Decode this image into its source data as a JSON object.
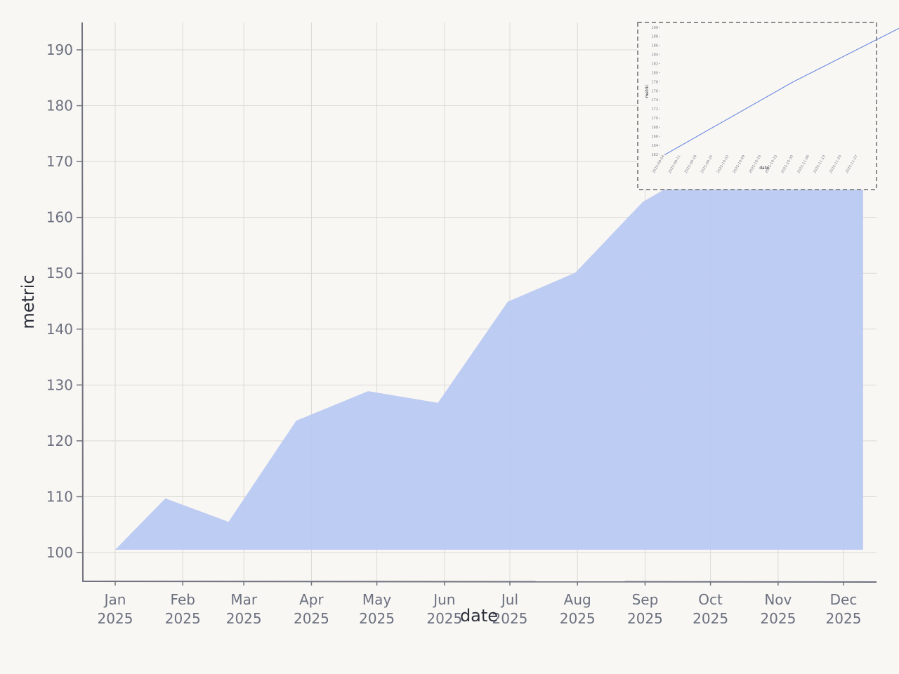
{
  "chart_data": [
    {
      "type": "area",
      "xlabel": "date",
      "ylabel": "metric",
      "x": [
        "2025-01-01",
        "2025-01-24",
        "2025-02-22",
        "2025-03-25",
        "2025-04-27",
        "2025-05-29",
        "2025-06-30",
        "2025-07-31",
        "2025-08-31",
        "2025-09-30",
        "2025-10-31",
        "2025-11-30",
        "2025-12-10"
      ],
      "values": [
        100.5,
        109.7,
        105.5,
        123.6,
        128.9,
        126.8,
        144.9,
        150.1,
        162.8,
        169.5,
        176.0,
        185.0,
        189.0
      ],
      "baseline": 100.5,
      "ylim": [
        95,
        195
      ],
      "y_ticks": [
        100,
        110,
        120,
        130,
        140,
        150,
        160,
        170,
        180,
        190
      ],
      "x_ticks": [
        {
          "date": "2025-01-01",
          "month": "Jan",
          "year": "2025"
        },
        {
          "date": "2025-02-01",
          "month": "Feb",
          "year": "2025"
        },
        {
          "date": "2025-03-01",
          "month": "Mar",
          "year": "2025"
        },
        {
          "date": "2025-04-01",
          "month": "Apr",
          "year": "2025"
        },
        {
          "date": "2025-05-01",
          "month": "May",
          "year": "2025"
        },
        {
          "date": "2025-06-01",
          "month": "Jun",
          "year": "2025"
        },
        {
          "date": "2025-07-01",
          "month": "Jul",
          "year": "2025"
        },
        {
          "date": "2025-08-01",
          "month": "Aug",
          "year": "2025"
        },
        {
          "date": "2025-09-01",
          "month": "Sep",
          "year": "2025"
        },
        {
          "date": "2025-10-01",
          "month": "Oct",
          "year": "2025"
        },
        {
          "date": "2025-11-01",
          "month": "Nov",
          "year": "2025"
        },
        {
          "date": "2025-12-01",
          "month": "Dec",
          "year": "2025"
        }
      ],
      "grid": true,
      "color": "#b9c9f1"
    },
    {
      "type": "line",
      "role": "inset",
      "xlabel": "date",
      "ylabel": "metric",
      "x": [
        "2025-09-04",
        "2025-10-30",
        "2025-12-17"
      ],
      "values": [
        161.9,
        178.0,
        190.3
      ],
      "ylim": [
        162,
        190
      ],
      "y_ticks": [
        162,
        164,
        166,
        168,
        170,
        172,
        174,
        176,
        178,
        180,
        182,
        184,
        186,
        188,
        190
      ],
      "x_ticks": [
        "2025-09-04",
        "2025-09-11",
        "2025-09-18",
        "2025-09-25",
        "2025-10-02",
        "2025-10-09",
        "2025-10-16",
        "2025-10-23",
        "2025-10-30",
        "2025-11-06",
        "2025-11-13",
        "2025-11-20",
        "2025-11-27"
      ],
      "color": "#5b7fe0"
    }
  ]
}
